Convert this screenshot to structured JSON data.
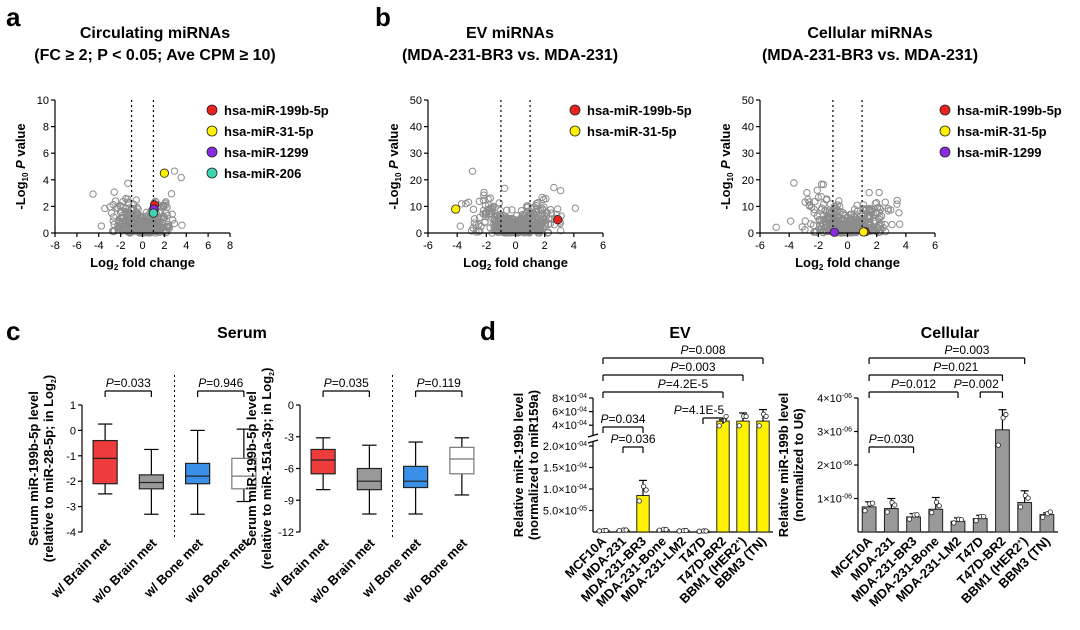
{
  "panels": {
    "a": {
      "label": "a",
      "title1": "Circulating miRNAs",
      "title2": "(FC ≥ 2; P < 0.05; Ave CPM ≥ 10)",
      "xlabel": "Log2 fold change",
      "ylabel": "-Log10 P value"
    },
    "b": {
      "label": "b"
    },
    "c": {
      "label": "c",
      "title": "Serum"
    },
    "d": {
      "label": "d"
    }
  },
  "chart_data": [
    {
      "id": "a",
      "type": "scatter",
      "xlim": [
        -8,
        8
      ],
      "ylim": [
        0,
        10
      ],
      "xticks": [
        -8,
        -6,
        -4,
        -2,
        0,
        2,
        4,
        6,
        8
      ],
      "yticks": [
        0,
        2,
        4,
        6,
        8,
        10
      ],
      "xlabel": "Log2 fold change",
      "ylabel": "-Log10 P value",
      "thresholds_x": [
        -1,
        1
      ],
      "legend": "top-right",
      "highlighted": [
        {
          "name": "hsa-miR-199b-5p",
          "color": "#e8221d",
          "x": 1.1,
          "y": 2.1
        },
        {
          "name": "hsa-miR-31-5p",
          "color": "#fff200",
          "x": 2.0,
          "y": 4.5
        },
        {
          "name": "hsa-miR-1299",
          "color": "#8a2be2",
          "x": 1.05,
          "y": 1.8
        },
        {
          "name": "hsa-miR-206",
          "color": "#3dd6b0",
          "x": 1.0,
          "y": 1.5
        }
      ]
    },
    {
      "id": "b1",
      "type": "scatter",
      "title1": "EV miRNAs",
      "title2": "(MDA-231-BR3 vs. MDA-231)",
      "xlim": [
        -6,
        6
      ],
      "ylim": [
        0,
        50
      ],
      "xticks": [
        -6,
        -4,
        -2,
        0,
        2,
        4,
        6
      ],
      "yticks": [
        0,
        10,
        20,
        30,
        40,
        50
      ],
      "xlabel": "Log2 fold change",
      "ylabel": "-Log10 P value",
      "thresholds_x": [
        -1,
        1
      ],
      "legend": "top-right",
      "highlighted": [
        {
          "name": "hsa-miR-199b-5p",
          "color": "#e8221d",
          "x": 2.9,
          "y": 5.0
        },
        {
          "name": "hsa-miR-31-5p",
          "color": "#fff200",
          "x": -4.1,
          "y": 9.0
        }
      ]
    },
    {
      "id": "b2",
      "type": "scatter",
      "title1": "Cellular miRNAs",
      "title2": "(MDA-231-BR3 vs. MDA-231)",
      "xlim": [
        -6,
        6
      ],
      "ylim": [
        0,
        50
      ],
      "xticks": [
        -6,
        -4,
        -2,
        0,
        2,
        4,
        6
      ],
      "yticks": [
        0,
        10,
        20,
        30,
        40,
        50
      ],
      "xlabel": "Log2 fold change",
      "ylabel": "-Log10 P value",
      "thresholds_x": [
        -1,
        1
      ],
      "legend": "top-right",
      "highlighted": [
        {
          "name": "hsa-miR-199b-5p",
          "color": "#e8221d",
          "x": 1.2,
          "y": 0.5
        },
        {
          "name": "hsa-miR-31-5p",
          "color": "#fff200",
          "x": 1.1,
          "y": 0.4
        },
        {
          "name": "hsa-miR-1299",
          "color": "#8a2be2",
          "x": -0.9,
          "y": 0.3
        }
      ]
    },
    {
      "id": "c1",
      "type": "boxplot",
      "ylabel": "Serum miR-199b-5p level",
      "ylabel2": "(relative to miR-28-5p; in Log2)",
      "ylim": [
        -4,
        1
      ],
      "yticks": [
        1,
        0,
        -1,
        -2,
        -3,
        -4
      ],
      "groups": [
        {
          "name": "w/ Brain met",
          "color": "#ee3b3b",
          "min": -2.5,
          "q1": -2.1,
          "median": -1.1,
          "q3": -0.4,
          "max": 0.25
        },
        {
          "name": "w/o Brain met",
          "color": "#999999",
          "min": -3.3,
          "q1": -2.3,
          "median": -2.05,
          "q3": -1.75,
          "max": -0.75
        },
        {
          "name": "w/ Bone met",
          "color": "#3a8fe8",
          "min": -3.3,
          "q1": -2.1,
          "median": -1.8,
          "q3": -1.3,
          "max": 0.0
        },
        {
          "name": "w/o Bone met",
          "color": "#ffffff",
          "min": -2.8,
          "q1": -2.3,
          "median": -1.8,
          "q3": -1.1,
          "max": 0.05
        }
      ],
      "pvalues": [
        {
          "label": "P=0.033",
          "from": 0,
          "to": 1
        },
        {
          "label": "P=0.946",
          "from": 2,
          "to": 3
        }
      ]
    },
    {
      "id": "c2",
      "type": "boxplot",
      "ylabel": "Serum miR-199b-5p level",
      "ylabel2": "(relative to miR-151a-3p; in Log2)",
      "ylim": [
        -12,
        0
      ],
      "yticks": [
        0,
        -3,
        -6,
        -9,
        -12
      ],
      "groups": [
        {
          "name": "w/ Brain met",
          "color": "#ee3b3b",
          "min": -8.0,
          "q1": -6.5,
          "median": -5.2,
          "q3": -4.2,
          "max": -3.1
        },
        {
          "name": "w/o Brain met",
          "color": "#999999",
          "min": -10.3,
          "q1": -8.0,
          "median": -7.2,
          "q3": -6.0,
          "max": -3.8
        },
        {
          "name": "w/ Bone met",
          "color": "#3a8fe8",
          "min": -10.3,
          "q1": -7.8,
          "median": -7.2,
          "q3": -5.8,
          "max": -3.5
        },
        {
          "name": "w/o Bone met",
          "color": "#ffffff",
          "min": -8.5,
          "q1": -6.5,
          "median": -5.1,
          "q3": -4.0,
          "max": -3.1
        }
      ],
      "pvalues": [
        {
          "label": "P=0.035",
          "from": 0,
          "to": 1
        },
        {
          "label": "P=0.119",
          "from": 2,
          "to": 3
        }
      ]
    },
    {
      "id": "d1",
      "type": "bar",
      "title": "EV",
      "ylabel": "Relative miR-199b level",
      "ylabel2": "(normalized to miR159a)",
      "color": "#fff200",
      "categories": [
        "MCF10A",
        "MDA-231",
        "MDA-231-BR3",
        "MDA-231-Bone",
        "MDA-231-LM2",
        "T47D",
        "T47D-BR2",
        "BBM1 (HER2+)",
        "BBM3 (TN)"
      ],
      "values": [
        3e-06,
        4e-06,
        8.5e-05,
        5e-06,
        3e-06,
        2e-06,
        0.00046,
        0.00046,
        0.00046
      ],
      "errors": [
        1e-06,
        1e-06,
        3.5e-05,
        2e-06,
        1e-06,
        1e-06,
        2e-05,
        0.00012,
        0.00017
      ],
      "lower_yticks": [
        "5.0×10-05",
        "1.0×10-04",
        "1.5×10-04",
        "2.0×10-04"
      ],
      "upper_yticks": [
        "4×10-04",
        "6×10-04",
        "8×10-04"
      ],
      "pvalues": [
        {
          "label": "P=0.008",
          "from": 0,
          "to": 8
        },
        {
          "label": "P=0.003",
          "from": 0,
          "to": 7
        },
        {
          "label": "P=4.2E-5",
          "from": 0,
          "to": 6
        },
        {
          "label": "P=4.1E-5",
          "from": 5,
          "to": 6
        },
        {
          "label": "P=0.034",
          "from": 0,
          "to": 2
        },
        {
          "label": "P=0.036",
          "from": 1,
          "to": 2
        }
      ]
    },
    {
      "id": "d2",
      "type": "bar",
      "title": "Cellular",
      "ylabel": "Relative miR-199b level",
      "ylabel2": "(normalized to U6)",
      "color": "#999999",
      "ylim": [
        0,
        4e-06
      ],
      "yticks": [
        "1×10-06",
        "2×10-06",
        "3×10-06",
        "4×10-06"
      ],
      "categories": [
        "MCF10A",
        "MDA-231",
        "MDA-231-BR3",
        "MDA-231-Bone",
        "MDA-231-LM2",
        "T47D",
        "T47D-BR2",
        "BBM1 (HER2+)",
        "BBM3 (TN)"
      ],
      "values": [
        7.5e-07,
        7e-07,
        4.5e-07,
        6.8e-07,
        3.2e-07,
        4e-07,
        3.05e-06,
        8.8e-07,
        5.2e-07
      ],
      "errors": [
        1.5e-07,
        3e-07,
        1e-07,
        3.5e-07,
        1e-07,
        1e-07,
        6e-07,
        3.5e-07,
        5e-08
      ],
      "pvalues": [
        {
          "label": "P=0.003",
          "from": 0,
          "to": 7
        },
        {
          "label": "P=0.021",
          "from": 0,
          "to": 6
        },
        {
          "label": "P=0.012",
          "from": 0,
          "to": 4
        },
        {
          "label": "P=0.002",
          "from": 5,
          "to": 6
        },
        {
          "label": "P=0.030",
          "from": 0,
          "to": 2
        }
      ]
    }
  ]
}
